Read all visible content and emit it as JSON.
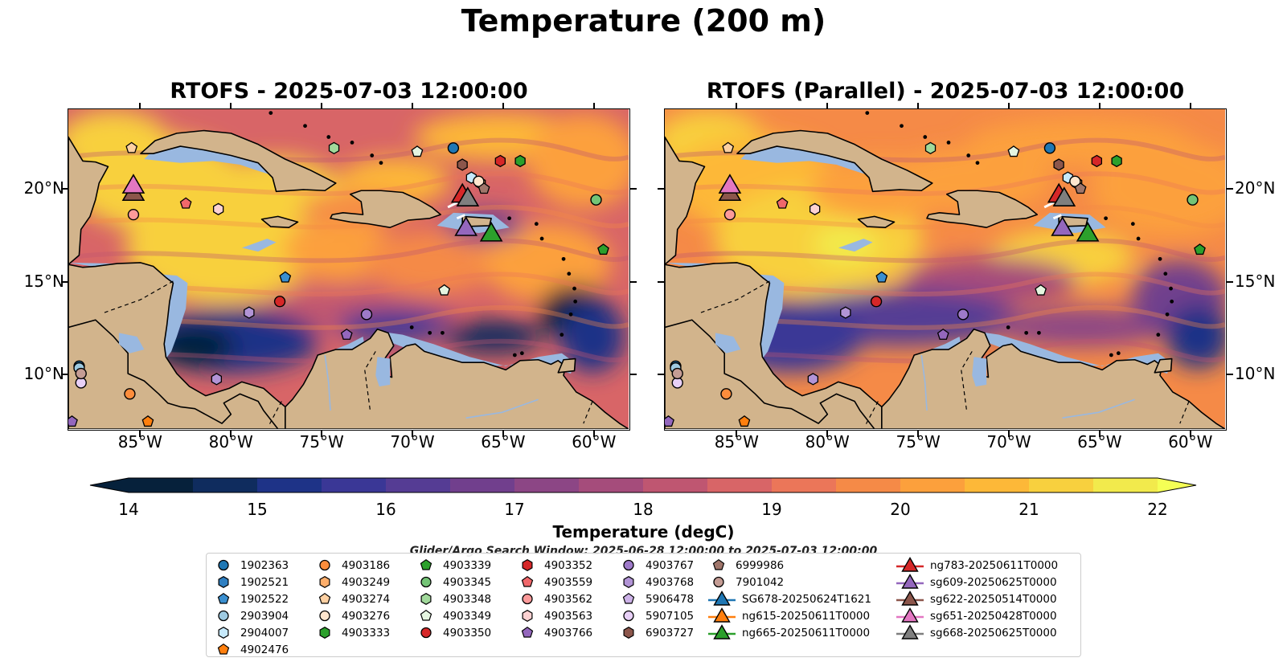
{
  "title": "Temperature (200 m)",
  "panels": [
    {
      "title": "RTOFS - 2025-07-03 12:00:00"
    },
    {
      "title": "RTOFS (Parallel) - 2025-07-03 12:00:00"
    }
  ],
  "map": {
    "lon_range": [
      -89,
      -58
    ],
    "lat_range": [
      7,
      24.3
    ],
    "lon_ticks": [
      "85°W",
      "80°W",
      "75°W",
      "70°W",
      "65°W",
      "60°W"
    ],
    "lat_ticks": [
      "20°N",
      "15°N",
      "10°N"
    ],
    "land_color": "#d2b48c",
    "shelf_color": "#99b8e0"
  },
  "colorbar": {
    "label": "Temperature (degC)",
    "min": 14,
    "max": 22,
    "ticks": [
      "14",
      "15",
      "16",
      "17",
      "18",
      "19",
      "20",
      "21",
      "22"
    ],
    "colors": [
      "#06213b",
      "#0f2c5e",
      "#1e3387",
      "#3a3796",
      "#553c94",
      "#713f8d",
      "#8c4685",
      "#a54c7b",
      "#bf5671",
      "#d86567",
      "#eb7659",
      "#f58a47",
      "#fca03c",
      "#fdb838",
      "#f8d03e",
      "#f2ea4c"
    ]
  },
  "search_window": "Glider/Argo Search Window: 2025-06-28 12:00:00 to 2025-07-03 12:00:00",
  "legend": {
    "columns": [
      [
        {
          "label": "1902363",
          "marker": "circle",
          "color": "#1f77b4"
        },
        {
          "label": "1902521",
          "marker": "hexagon",
          "color": "#2f7fc1"
        },
        {
          "label": "1902522",
          "marker": "pentagon",
          "color": "#3a8fd0"
        },
        {
          "label": "2903904",
          "marker": "circle",
          "color": "#9ecae1"
        },
        {
          "label": "2904007",
          "marker": "hexagon",
          "color": "#c6e9fb"
        },
        {
          "label": "4902476",
          "marker": "pentagon",
          "color": "#ff7f0e"
        }
      ],
      [
        {
          "label": "4903186",
          "marker": "circle",
          "color": "#fd8d3c"
        },
        {
          "label": "4903249",
          "marker": "hexagon",
          "color": "#fdae6b"
        },
        {
          "label": "4903274",
          "marker": "pentagon",
          "color": "#fdd0a2"
        },
        {
          "label": "4903276",
          "marker": "circle",
          "color": "#fee6ce"
        },
        {
          "label": "4903333",
          "marker": "hexagon",
          "color": "#2ca02c"
        }
      ],
      [
        {
          "label": "4903339",
          "marker": "pentagon",
          "color": "#2ca02c"
        },
        {
          "label": "4903345",
          "marker": "circle",
          "color": "#74c476"
        },
        {
          "label": "4903348",
          "marker": "hexagon",
          "color": "#a1d99b"
        },
        {
          "label": "4903349",
          "marker": "pentagon",
          "color": "#e5f5e0"
        },
        {
          "label": "4903350",
          "marker": "circle",
          "color": "#d62728"
        }
      ],
      [
        {
          "label": "4903352",
          "marker": "hexagon",
          "color": "#d62728"
        },
        {
          "label": "4903559",
          "marker": "pentagon",
          "color": "#f0686b"
        },
        {
          "label": "4903562",
          "marker": "circle",
          "color": "#fc9a9a"
        },
        {
          "label": "4903563",
          "marker": "hexagon",
          "color": "#fdd2d2"
        },
        {
          "label": "4903766",
          "marker": "pentagon",
          "color": "#9467bd"
        }
      ],
      [
        {
          "label": "4903767",
          "marker": "circle",
          "color": "#9e7ac9"
        },
        {
          "label": "4903768",
          "marker": "hexagon",
          "color": "#b294d6"
        },
        {
          "label": "5906478",
          "marker": "pentagon",
          "color": "#cdb2e8"
        },
        {
          "label": "5907105",
          "marker": "circle",
          "color": "#e8d0f7"
        },
        {
          "label": "6903727",
          "marker": "hexagon",
          "color": "#8c564b"
        }
      ],
      [
        {
          "label": "6999986",
          "marker": "pentagon",
          "color": "#a0766b"
        },
        {
          "label": "7901042",
          "marker": "circle",
          "color": "#c49c94"
        },
        {
          "label": "SG678-20250624T1621",
          "marker": "triangle",
          "color": "#1f77b4"
        },
        {
          "label": "ng615-20250611T0000",
          "marker": "triangle",
          "color": "#ff7f0e"
        },
        {
          "label": "ng665-20250611T0000",
          "marker": "triangle",
          "color": "#2ca02c"
        }
      ],
      [
        {
          "label": "ng783-20250611T0000",
          "marker": "triangle",
          "color": "#d62728"
        },
        {
          "label": "sg609-20250625T0000",
          "marker": "triangle",
          "color": "#9467bd"
        },
        {
          "label": "sg622-20250514T0000",
          "marker": "triangle",
          "color": "#8c564b"
        },
        {
          "label": "sg651-20250428T0000",
          "marker": "triangle",
          "color": "#e377c2"
        },
        {
          "label": "sg668-20250625T0000",
          "marker": "triangle",
          "color": "#7f7f7f"
        }
      ]
    ]
  },
  "markers": [
    {
      "name": "1902363",
      "marker": "circle",
      "color": "#1f77b4",
      "lon": -67.7,
      "lat": 22.2
    },
    {
      "name": "1902363",
      "marker": "circle",
      "color": "#1f77b4",
      "lon": -88.4,
      "lat": 10.4
    },
    {
      "name": "1902522",
      "marker": "pentagon",
      "color": "#3a8fd0",
      "lon": -77.0,
      "lat": 15.2
    },
    {
      "name": "2903904",
      "marker": "circle",
      "color": "#9ecae1",
      "lon": -88.4,
      "lat": 10.3
    },
    {
      "name": "2904007",
      "marker": "hexagon",
      "color": "#c6e9fb",
      "lon": -66.7,
      "lat": 20.6
    },
    {
      "name": "4902476",
      "marker": "pentagon",
      "color": "#ff7f0e",
      "lon": -84.6,
      "lat": 7.4
    },
    {
      "name": "4903186",
      "marker": "circle",
      "color": "#fd8d3c",
      "lon": -85.6,
      "lat": 8.9
    },
    {
      "name": "4903249",
      "marker": "hexagon",
      "color": "#fdae6b",
      "lon": -66.2,
      "lat": 20.3
    },
    {
      "name": "4903274",
      "marker": "pentagon",
      "color": "#fdd0a2",
      "lon": -85.5,
      "lat": 22.2
    },
    {
      "name": "4903276",
      "marker": "circle",
      "color": "#fee6ce",
      "lon": -66.3,
      "lat": 20.4
    },
    {
      "name": "4903333",
      "marker": "hexagon",
      "color": "#2ca02c",
      "lon": -64.0,
      "lat": 21.5
    },
    {
      "name": "4903339",
      "marker": "pentagon",
      "color": "#2ca02c",
      "lon": -59.4,
      "lat": 16.7
    },
    {
      "name": "4903345",
      "marker": "circle",
      "color": "#74c476",
      "lon": -59.8,
      "lat": 19.4
    },
    {
      "name": "4903348",
      "marker": "hexagon",
      "color": "#a1d99b",
      "lon": -74.3,
      "lat": 22.2
    },
    {
      "name": "4903349",
      "marker": "pentagon",
      "color": "#e5f5e0",
      "lon": -69.7,
      "lat": 22.0
    },
    {
      "name": "4903349",
      "marker": "pentagon",
      "color": "#e5f5e0",
      "lon": -68.2,
      "lat": 14.5
    },
    {
      "name": "4903350",
      "marker": "circle",
      "color": "#d62728",
      "lon": -77.3,
      "lat": 13.9
    },
    {
      "name": "4903352",
      "marker": "hexagon",
      "color": "#d62728",
      "lon": -65.1,
      "lat": 21.5
    },
    {
      "name": "4903559",
      "marker": "pentagon",
      "color": "#f0686b",
      "lon": -82.5,
      "lat": 19.2
    },
    {
      "name": "4903562",
      "marker": "circle",
      "color": "#fc9a9a",
      "lon": -85.4,
      "lat": 18.6
    },
    {
      "name": "4903563",
      "marker": "hexagon",
      "color": "#fdd2d2",
      "lon": -80.7,
      "lat": 18.9
    },
    {
      "name": "4903766",
      "marker": "pentagon",
      "color": "#9467bd",
      "lon": -73.6,
      "lat": 12.1
    },
    {
      "name": "4903766",
      "marker": "pentagon",
      "color": "#9467bd",
      "lon": -88.8,
      "lat": 7.4
    },
    {
      "name": "4903767",
      "marker": "circle",
      "color": "#9e7ac9",
      "lon": -72.5,
      "lat": 13.2
    },
    {
      "name": "4903768",
      "marker": "hexagon",
      "color": "#b294d6",
      "lon": -79.0,
      "lat": 13.3
    },
    {
      "name": "4903768",
      "marker": "hexagon",
      "color": "#b294d6",
      "lon": -80.8,
      "lat": 9.7
    },
    {
      "name": "5907105",
      "marker": "circle",
      "color": "#e8d0f7",
      "lon": -88.3,
      "lat": 9.5
    },
    {
      "name": "6903727",
      "marker": "hexagon",
      "color": "#8c564b",
      "lon": -67.2,
      "lat": 21.3
    },
    {
      "name": "6999986",
      "marker": "pentagon",
      "color": "#a0766b",
      "lon": -66.0,
      "lat": 20.0
    },
    {
      "name": "7901042",
      "marker": "circle",
      "color": "#c49c94",
      "lon": -88.3,
      "lat": 10.0
    },
    {
      "name": "ng783-20250611T0000",
      "marker": "triangle",
      "color": "#d62728",
      "lon": -67.2,
      "lat": 19.6
    },
    {
      "name": "sg622-20250514T0000",
      "marker": "triangle",
      "color": "#8c564b",
      "lon": -85.4,
      "lat": 19.7
    },
    {
      "name": "sg651-20250428T0000",
      "marker": "triangle",
      "color": "#e377c2",
      "lon": -85.4,
      "lat": 20.1
    },
    {
      "name": "sg668-20250625T0000",
      "marker": "triangle",
      "color": "#7f7f7f",
      "lon": -66.9,
      "lat": 19.4
    },
    {
      "name": "sg609-20250625T0000",
      "marker": "triangle",
      "color": "#9467bd",
      "lon": -67.0,
      "lat": 17.8
    },
    {
      "name": "ng665-20250611T0000",
      "marker": "triangle",
      "color": "#2ca02c",
      "lon": -65.6,
      "lat": 17.5
    }
  ]
}
